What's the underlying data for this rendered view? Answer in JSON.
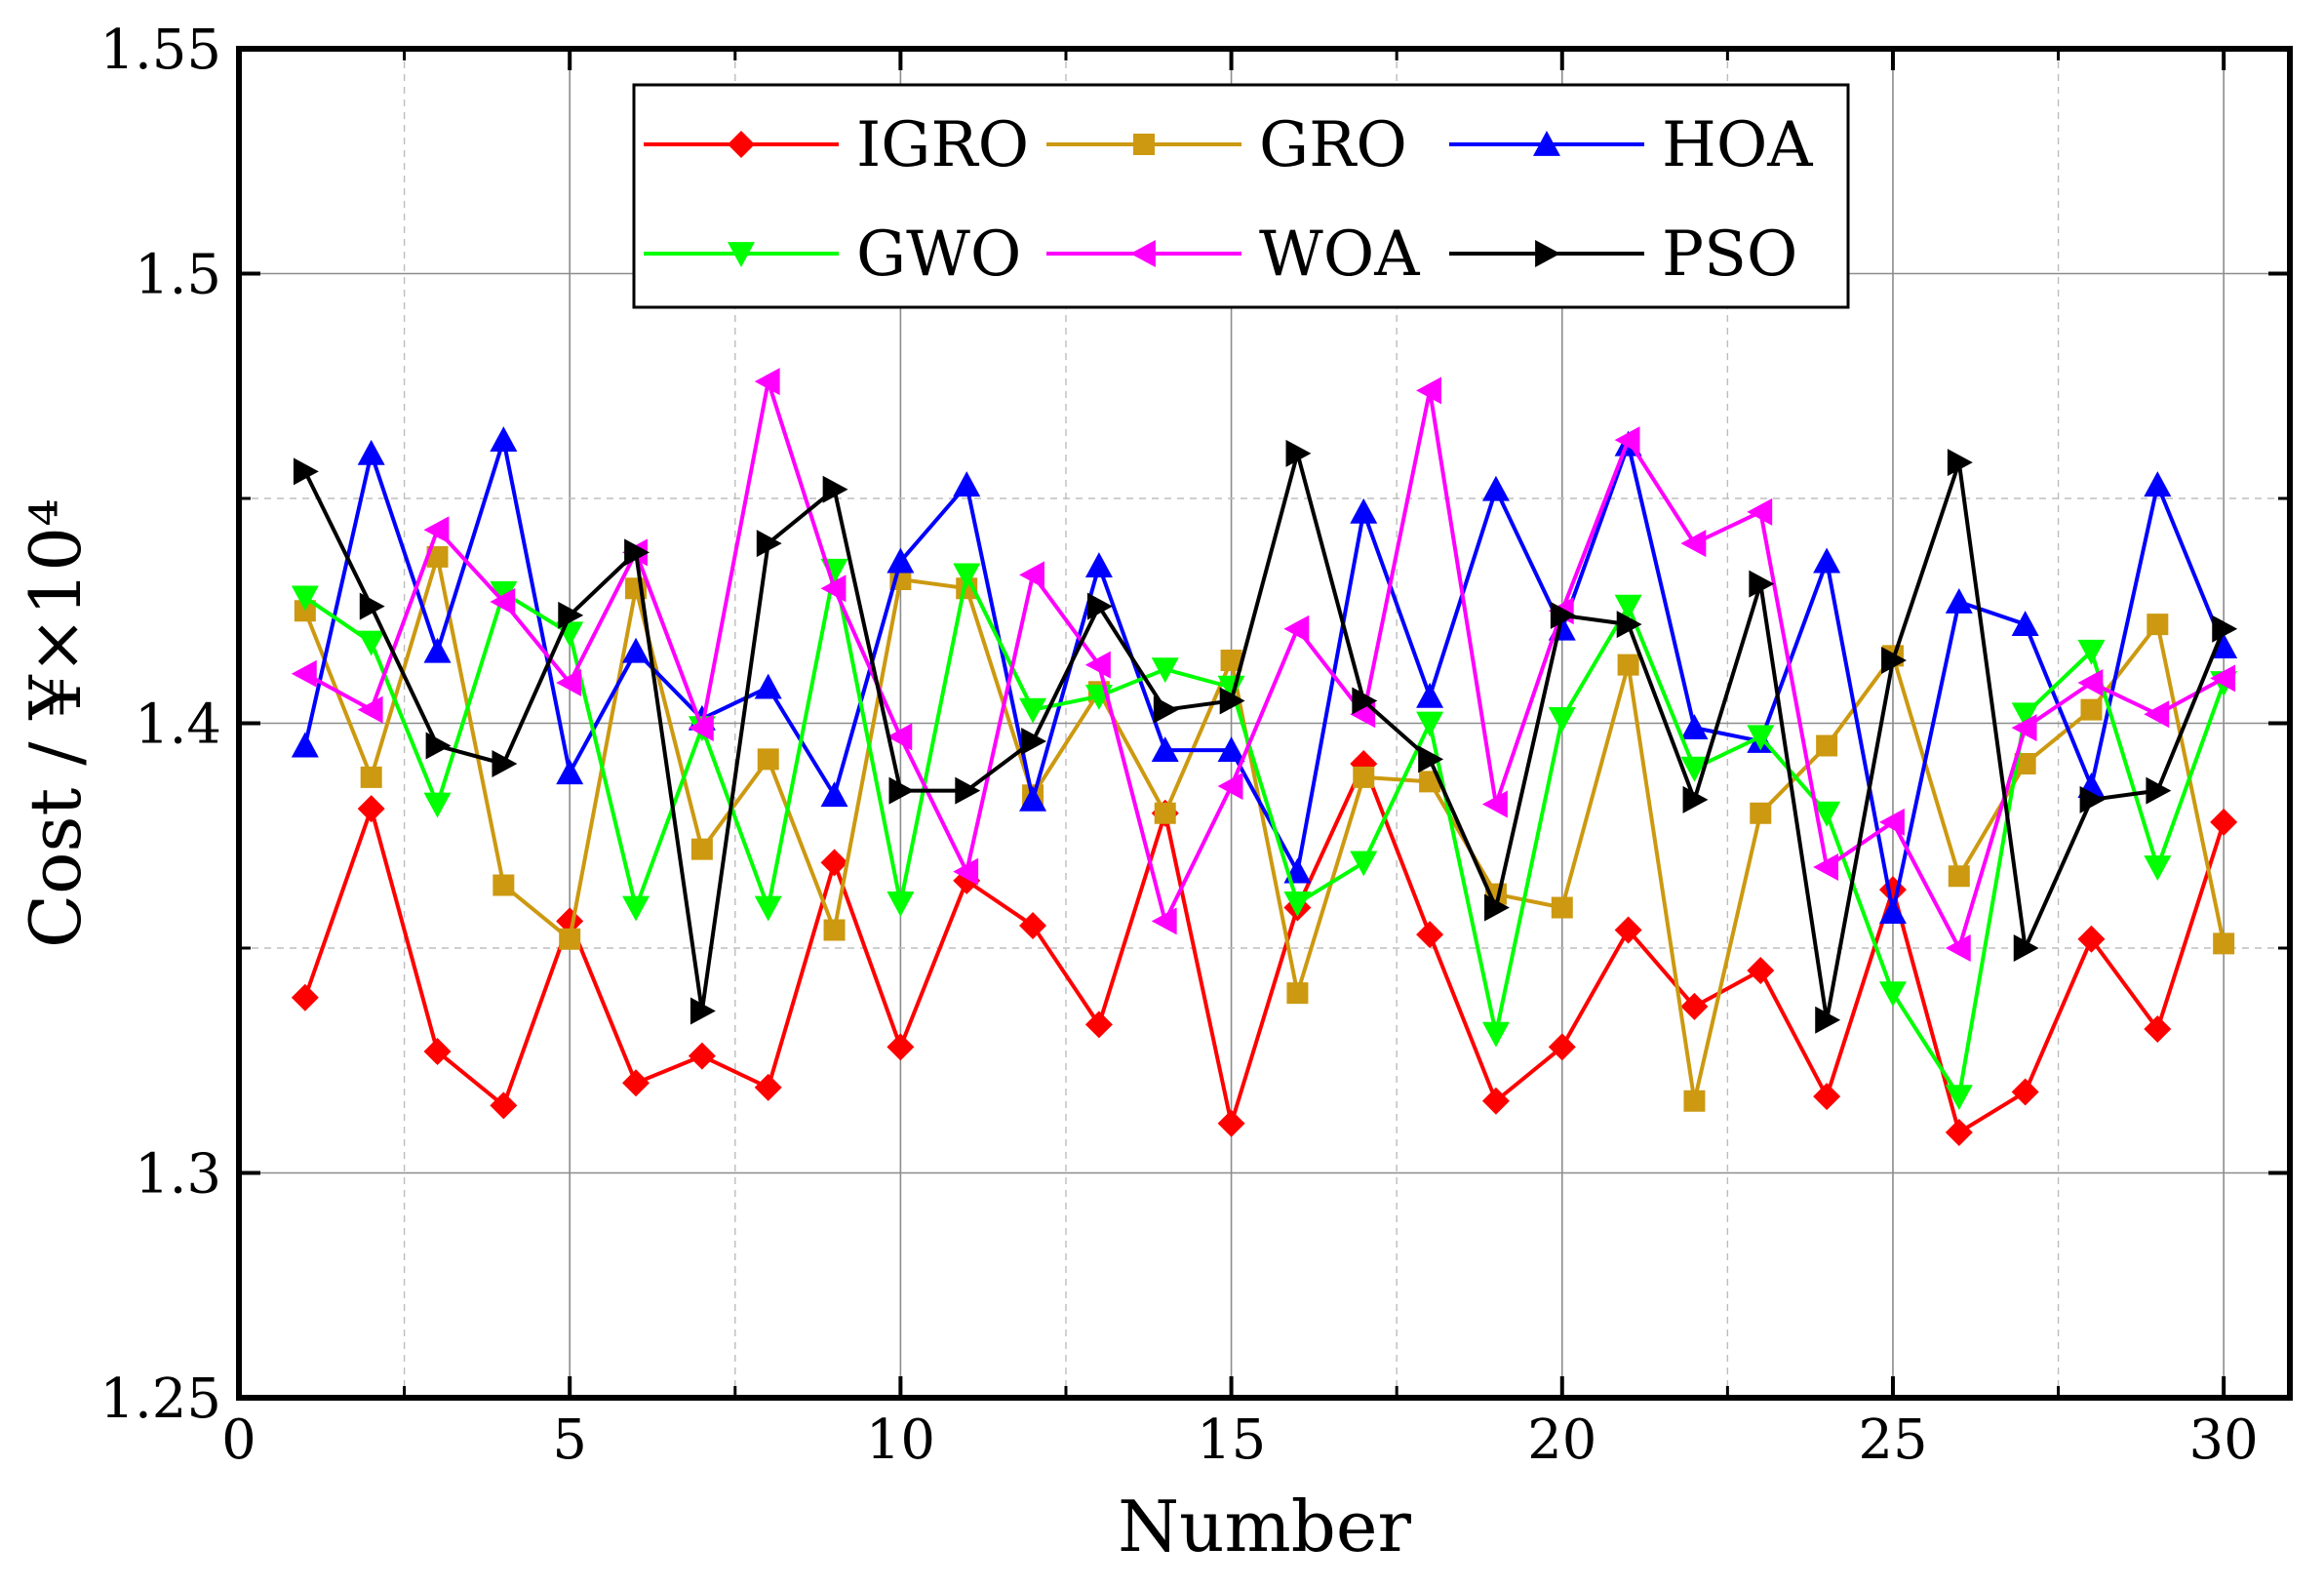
{
  "chart_data": {
    "type": "line",
    "xlabel": "Number",
    "ylabel": "Cost / ¥×10⁴",
    "xlim": [
      0,
      31
    ],
    "ylim": [
      1.25,
      1.55
    ],
    "x_major_ticks": [
      0,
      5,
      10,
      15,
      20,
      25,
      30
    ],
    "x_tick_labels": [
      "0",
      "5",
      "10",
      "15",
      "20",
      "25",
      "30"
    ],
    "x_minor_grid": [
      2.5,
      7.5,
      12.5,
      17.5,
      22.5,
      27.5
    ],
    "y_major_ticks": [
      1.25,
      1.3,
      1.4,
      1.5,
      1.55
    ],
    "y_tick_labels": [
      "1.25",
      "1.3",
      "1.4",
      "1.5",
      "1.55"
    ],
    "y_minor_grid": [
      1.35,
      1.45
    ],
    "grid": true,
    "legend_position": "top-center",
    "x": [
      1,
      2,
      3,
      4,
      5,
      6,
      7,
      8,
      9,
      10,
      11,
      12,
      13,
      14,
      15,
      16,
      17,
      18,
      19,
      20,
      21,
      22,
      23,
      24,
      25,
      26,
      27,
      28,
      29,
      30
    ],
    "series": [
      {
        "name": "IGRO",
        "color": "#ff0000",
        "marker": "diamond",
        "values": [
          1.339,
          1.381,
          1.327,
          1.315,
          1.356,
          1.32,
          1.326,
          1.319,
          1.369,
          1.328,
          1.365,
          1.355,
          1.333,
          1.38,
          1.311,
          1.359,
          1.391,
          1.353,
          1.316,
          1.328,
          1.354,
          1.337,
          1.345,
          1.317,
          1.363,
          1.309,
          1.318,
          1.352,
          1.332,
          1.378
        ]
      },
      {
        "name": "GRO",
        "color": "#cc9910",
        "marker": "square",
        "values": [
          1.425,
          1.388,
          1.437,
          1.364,
          1.352,
          1.43,
          1.372,
          1.392,
          1.354,
          1.432,
          1.43,
          1.384,
          1.407,
          1.38,
          1.414,
          1.34,
          1.388,
          1.387,
          1.362,
          1.359,
          1.413,
          1.316,
          1.38,
          1.395,
          1.415,
          1.366,
          1.391,
          1.403,
          1.422,
          1.351
        ]
      },
      {
        "name": "HOA",
        "color": "#0000ff",
        "marker": "triangle-up",
        "values": [
          1.395,
          1.46,
          1.416,
          1.463,
          1.389,
          1.416,
          1.401,
          1.408,
          1.384,
          1.436,
          1.453,
          1.383,
          1.435,
          1.394,
          1.394,
          1.367,
          1.447,
          1.406,
          1.452,
          1.421,
          1.462,
          1.399,
          1.396,
          1.436,
          1.358,
          1.427,
          1.422,
          1.386,
          1.453,
          1.417
        ]
      },
      {
        "name": "GWO",
        "color": "#00ff00",
        "marker": "triangle-down",
        "values": [
          1.428,
          1.418,
          1.382,
          1.429,
          1.42,
          1.359,
          1.399,
          1.359,
          1.434,
          1.36,
          1.433,
          1.403,
          1.406,
          1.412,
          1.408,
          1.36,
          1.369,
          1.4,
          1.331,
          1.401,
          1.426,
          1.39,
          1.397,
          1.38,
          1.34,
          1.317,
          1.402,
          1.416,
          1.368,
          1.409
        ]
      },
      {
        "name": "WOA",
        "color": "#ff00ff",
        "marker": "triangle-left",
        "values": [
          1.411,
          1.403,
          1.443,
          1.427,
          1.409,
          1.438,
          1.399,
          1.476,
          1.43,
          1.397,
          1.367,
          1.433,
          1.413,
          1.356,
          1.386,
          1.421,
          1.402,
          1.474,
          1.382,
          1.425,
          1.463,
          1.44,
          1.447,
          1.368,
          1.378,
          1.35,
          1.399,
          1.409,
          1.402,
          1.41
        ]
      },
      {
        "name": "PSO",
        "color": "#000000",
        "marker": "triangle-right",
        "values": [
          1.456,
          1.426,
          1.395,
          1.391,
          1.424,
          1.438,
          1.336,
          1.44,
          1.452,
          1.385,
          1.385,
          1.396,
          1.426,
          1.403,
          1.405,
          1.46,
          1.405,
          1.392,
          1.359,
          1.424,
          1.422,
          1.383,
          1.431,
          1.334,
          1.414,
          1.458,
          1.35,
          1.383,
          1.385,
          1.421
        ]
      }
    ]
  }
}
